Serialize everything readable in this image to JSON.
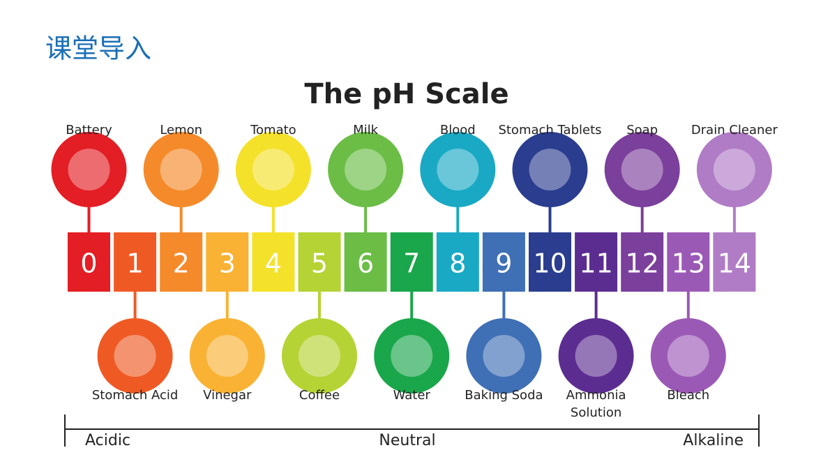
{
  "header": {
    "title": "课堂导入"
  },
  "scale": {
    "title": "The pH Scale",
    "levels": [
      {
        "value": 0,
        "color": "#e31e24",
        "item": {
          "position": "top",
          "lines": [
            "Battery"
          ]
        }
      },
      {
        "value": 1,
        "color": "#ef5a24",
        "item": {
          "position": "bottom",
          "lines": [
            "Stomach Acid"
          ]
        }
      },
      {
        "value": 2,
        "color": "#f58a2a",
        "item": {
          "position": "top",
          "lines": [
            "Lemon"
          ]
        }
      },
      {
        "value": 3,
        "color": "#f9b233",
        "item": {
          "position": "bottom",
          "lines": [
            "Vinegar"
          ]
        }
      },
      {
        "value": 4,
        "color": "#f4e12a",
        "item": {
          "position": "top",
          "lines": [
            "Tomato"
          ]
        }
      },
      {
        "value": 5,
        "color": "#b5d334",
        "item": {
          "position": "bottom",
          "lines": [
            "Coffee"
          ]
        }
      },
      {
        "value": 6,
        "color": "#6bbd45",
        "item": {
          "position": "top",
          "lines": [
            "Milk"
          ]
        }
      },
      {
        "value": 7,
        "color": "#1aa64a",
        "item": {
          "position": "bottom",
          "lines": [
            "Water"
          ]
        }
      },
      {
        "value": 8,
        "color": "#19a9c5",
        "item": {
          "position": "top",
          "lines": [
            "Blood"
          ]
        }
      },
      {
        "value": 9,
        "color": "#3f6fb5",
        "item": {
          "position": "bottom",
          "lines": [
            "Baking Soda"
          ]
        }
      },
      {
        "value": 10,
        "color": "#2a3d8f",
        "item": {
          "position": "top",
          "lines": [
            "Stomach Tablets"
          ]
        }
      },
      {
        "value": 11,
        "color": "#5c2d91",
        "item": {
          "position": "bottom",
          "lines": [
            "Ammonia",
            "Solution"
          ]
        }
      },
      {
        "value": 12,
        "color": "#7b3f9c",
        "item": {
          "position": "top",
          "lines": [
            "Soap"
          ]
        }
      },
      {
        "value": 13,
        "color": "#9b59b6",
        "item": {
          "position": "bottom",
          "lines": [
            "Bleach"
          ]
        }
      },
      {
        "value": 14,
        "color": "#b07cc6",
        "item": {
          "position": "top",
          "lines": [
            "Drain Cleaner"
          ]
        }
      }
    ],
    "axis": {
      "left": "Acidic",
      "center": "Neutral",
      "right": "Alkaline"
    }
  }
}
